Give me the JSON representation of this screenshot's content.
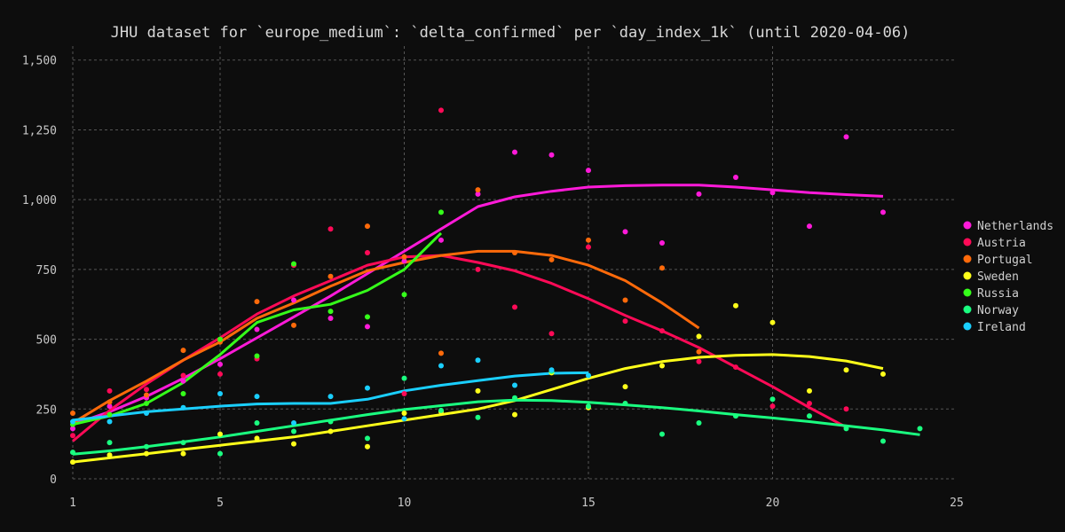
{
  "chart_data": {
    "type": "scatter",
    "title": "JHU dataset for `europe_medium`: `delta_confirmed` per `day_index_1k` (until 2020-04-06)",
    "xlabel": "",
    "ylabel": "",
    "xlim": [
      1,
      25
    ],
    "ylim": [
      0,
      1550
    ],
    "x_ticks": [
      1,
      5,
      10,
      15,
      20,
      25
    ],
    "y_ticks": [
      0,
      250,
      500,
      750,
      1000,
      1250,
      1500
    ],
    "x_tick_labels": [
      "1",
      "5",
      "10",
      "15",
      "20",
      "25"
    ],
    "y_tick_labels": [
      "0",
      "250",
      "500",
      "750",
      "1,000",
      "1,250",
      "1,500"
    ],
    "grid": true,
    "legend_position": "right",
    "series": [
      {
        "name": "Netherlands",
        "color": "#ff1ad9",
        "points": [
          [
            1,
            180
          ],
          [
            2,
            260
          ],
          [
            3,
            290
          ],
          [
            4,
            350
          ],
          [
            5,
            410
          ],
          [
            6,
            535
          ],
          [
            7,
            640
          ],
          [
            8,
            575
          ],
          [
            9,
            545
          ],
          [
            10,
            780
          ],
          [
            11,
            855
          ],
          [
            12,
            1020
          ],
          [
            13,
            1170
          ],
          [
            14,
            1160
          ],
          [
            15,
            1105
          ],
          [
            16,
            885
          ],
          [
            17,
            845
          ],
          [
            18,
            1020
          ],
          [
            19,
            1080
          ],
          [
            20,
            1025
          ],
          [
            21,
            905
          ],
          [
            22,
            1225
          ],
          [
            23,
            955
          ]
        ],
        "trend": [
          [
            1,
            195
          ],
          [
            2,
            240
          ],
          [
            3,
            295
          ],
          [
            4,
            360
          ],
          [
            5,
            430
          ],
          [
            6,
            505
          ],
          [
            7,
            580
          ],
          [
            8,
            655
          ],
          [
            9,
            735
          ],
          [
            10,
            815
          ],
          [
            11,
            895
          ],
          [
            12,
            975
          ],
          [
            13,
            1010
          ],
          [
            14,
            1030
          ],
          [
            15,
            1045
          ],
          [
            16,
            1050
          ],
          [
            17,
            1052
          ],
          [
            18,
            1052
          ],
          [
            19,
            1045
          ],
          [
            20,
            1035
          ],
          [
            21,
            1025
          ],
          [
            22,
            1018
          ],
          [
            23,
            1012
          ]
        ]
      },
      {
        "name": "Austria",
        "color": "#ff0a57",
        "points": [
          [
            1,
            155
          ],
          [
            2,
            315
          ],
          [
            3,
            320
          ],
          [
            4,
            370
          ],
          [
            5,
            375
          ],
          [
            6,
            430
          ],
          [
            7,
            765
          ],
          [
            8,
            895
          ],
          [
            9,
            810
          ],
          [
            10,
            305
          ],
          [
            11,
            1320
          ],
          [
            12,
            750
          ],
          [
            13,
            615
          ],
          [
            14,
            520
          ],
          [
            15,
            830
          ],
          [
            16,
            565
          ],
          [
            17,
            530
          ],
          [
            18,
            420
          ],
          [
            19,
            400
          ],
          [
            20,
            260
          ],
          [
            21,
            270
          ],
          [
            22,
            250
          ]
        ],
        "trend": [
          [
            1,
            135
          ],
          [
            2,
            245
          ],
          [
            3,
            340
          ],
          [
            4,
            425
          ],
          [
            5,
            505
          ],
          [
            6,
            590
          ],
          [
            7,
            655
          ],
          [
            8,
            710
          ],
          [
            9,
            765
          ],
          [
            10,
            795
          ],
          [
            11,
            800
          ],
          [
            12,
            775
          ],
          [
            13,
            745
          ],
          [
            14,
            700
          ],
          [
            15,
            645
          ],
          [
            16,
            585
          ],
          [
            17,
            530
          ],
          [
            18,
            470
          ],
          [
            19,
            400
          ],
          [
            20,
            330
          ],
          [
            21,
            255
          ],
          [
            22,
            185
          ]
        ]
      },
      {
        "name": "Portugal",
        "color": "#ff6a0a",
        "points": [
          [
            1,
            235
          ],
          [
            2,
            275
          ],
          [
            3,
            300
          ],
          [
            4,
            460
          ],
          [
            5,
            490
          ],
          [
            6,
            635
          ],
          [
            7,
            550
          ],
          [
            8,
            725
          ],
          [
            9,
            905
          ],
          [
            10,
            795
          ],
          [
            11,
            450
          ],
          [
            12,
            1035
          ],
          [
            13,
            810
          ],
          [
            14,
            785
          ],
          [
            15,
            855
          ],
          [
            16,
            640
          ],
          [
            17,
            755
          ],
          [
            18,
            455
          ]
        ],
        "trend": [
          [
            1,
            200
          ],
          [
            2,
            280
          ],
          [
            3,
            350
          ],
          [
            4,
            425
          ],
          [
            5,
            490
          ],
          [
            6,
            575
          ],
          [
            7,
            630
          ],
          [
            8,
            690
          ],
          [
            9,
            745
          ],
          [
            10,
            775
          ],
          [
            11,
            800
          ],
          [
            12,
            815
          ],
          [
            13,
            815
          ],
          [
            14,
            800
          ],
          [
            15,
            765
          ],
          [
            16,
            710
          ],
          [
            17,
            630
          ],
          [
            18,
            540
          ]
        ]
      },
      {
        "name": "Sweden",
        "color": "#ffff1a",
        "points": [
          [
            1,
            60
          ],
          [
            2,
            85
          ],
          [
            3,
            90
          ],
          [
            4,
            90
          ],
          [
            5,
            160
          ],
          [
            6,
            145
          ],
          [
            7,
            125
          ],
          [
            8,
            170
          ],
          [
            9,
            115
          ],
          [
            10,
            235
          ],
          [
            11,
            240
          ],
          [
            12,
            315
          ],
          [
            13,
            230
          ],
          [
            14,
            380
          ],
          [
            15,
            255
          ],
          [
            16,
            330
          ],
          [
            17,
            405
          ],
          [
            18,
            510
          ],
          [
            19,
            620
          ],
          [
            20,
            560
          ],
          [
            21,
            315
          ],
          [
            22,
            390
          ],
          [
            23,
            375
          ]
        ],
        "trend": [
          [
            1,
            60
          ],
          [
            2,
            75
          ],
          [
            3,
            90
          ],
          [
            4,
            105
          ],
          [
            5,
            120
          ],
          [
            6,
            135
          ],
          [
            7,
            150
          ],
          [
            8,
            170
          ],
          [
            9,
            190
          ],
          [
            10,
            210
          ],
          [
            11,
            230
          ],
          [
            12,
            250
          ],
          [
            13,
            280
          ],
          [
            14,
            320
          ],
          [
            15,
            360
          ],
          [
            16,
            395
          ],
          [
            17,
            420
          ],
          [
            18,
            435
          ],
          [
            19,
            442
          ],
          [
            20,
            445
          ],
          [
            21,
            438
          ],
          [
            22,
            422
          ],
          [
            23,
            395
          ]
        ]
      },
      {
        "name": "Russia",
        "color": "#35ff1a",
        "points": [
          [
            1,
            195
          ],
          [
            2,
            230
          ],
          [
            3,
            270
          ],
          [
            4,
            305
          ],
          [
            5,
            500
          ],
          [
            6,
            440
          ],
          [
            7,
            770
          ],
          [
            8,
            600
          ],
          [
            9,
            580
          ],
          [
            10,
            660
          ],
          [
            11,
            955
          ]
        ],
        "trend": [
          [
            1,
            195
          ],
          [
            2,
            225
          ],
          [
            3,
            270
          ],
          [
            4,
            345
          ],
          [
            5,
            445
          ],
          [
            6,
            560
          ],
          [
            7,
            605
          ],
          [
            8,
            625
          ],
          [
            9,
            675
          ],
          [
            10,
            750
          ],
          [
            11,
            880
          ]
        ]
      },
      {
        "name": "Norway",
        "color": "#1aff80",
        "points": [
          [
            1,
            95
          ],
          [
            2,
            130
          ],
          [
            3,
            115
          ],
          [
            4,
            130
          ],
          [
            5,
            90
          ],
          [
            6,
            200
          ],
          [
            7,
            170
          ],
          [
            8,
            205
          ],
          [
            9,
            145
          ],
          [
            10,
            360
          ],
          [
            11,
            245
          ],
          [
            12,
            220
          ],
          [
            13,
            290
          ],
          [
            14,
            385
          ],
          [
            15,
            260
          ],
          [
            16,
            270
          ],
          [
            17,
            160
          ],
          [
            18,
            200
          ],
          [
            19,
            225
          ],
          [
            20,
            285
          ],
          [
            21,
            225
          ],
          [
            22,
            180
          ],
          [
            23,
            135
          ],
          [
            24,
            180
          ]
        ],
        "trend": [
          [
            1,
            88
          ],
          [
            2,
            100
          ],
          [
            3,
            115
          ],
          [
            4,
            132
          ],
          [
            5,
            150
          ],
          [
            6,
            170
          ],
          [
            7,
            190
          ],
          [
            8,
            210
          ],
          [
            9,
            230
          ],
          [
            10,
            248
          ],
          [
            11,
            262
          ],
          [
            12,
            276
          ],
          [
            13,
            282
          ],
          [
            14,
            280
          ],
          [
            15,
            274
          ],
          [
            16,
            265
          ],
          [
            17,
            255
          ],
          [
            18,
            243
          ],
          [
            19,
            230
          ],
          [
            20,
            218
          ],
          [
            21,
            205
          ],
          [
            22,
            190
          ],
          [
            23,
            175
          ],
          [
            24,
            158
          ]
        ]
      },
      {
        "name": "Ireland",
        "color": "#1acfff",
        "points": [
          [
            1,
            205
          ],
          [
            2,
            205
          ],
          [
            3,
            235
          ],
          [
            4,
            255
          ],
          [
            5,
            305
          ],
          [
            6,
            295
          ],
          [
            7,
            200
          ],
          [
            8,
            295
          ],
          [
            9,
            325
          ],
          [
            10,
            215
          ],
          [
            11,
            405
          ],
          [
            12,
            425
          ],
          [
            13,
            335
          ],
          [
            14,
            390
          ],
          [
            15,
            370
          ]
        ],
        "trend": [
          [
            1,
            210
          ],
          [
            2,
            225
          ],
          [
            3,
            240
          ],
          [
            4,
            250
          ],
          [
            5,
            260
          ],
          [
            6,
            268
          ],
          [
            7,
            270
          ],
          [
            8,
            270
          ],
          [
            9,
            285
          ],
          [
            10,
            315
          ],
          [
            11,
            335
          ],
          [
            12,
            352
          ],
          [
            13,
            368
          ],
          [
            14,
            378
          ],
          [
            15,
            380
          ]
        ]
      }
    ]
  }
}
